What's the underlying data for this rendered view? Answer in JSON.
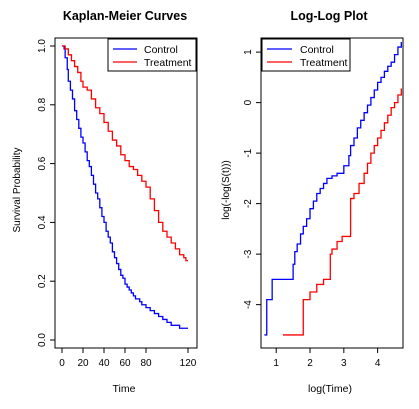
{
  "chart_data": [
    {
      "type": "line",
      "step": true,
      "title": "Kaplan-Meier Curves",
      "xlabel": "Time",
      "ylabel": "Survival Probability",
      "xlim": [
        0,
        120
      ],
      "ylim": [
        0,
        1
      ],
      "xticks": [
        0,
        20,
        40,
        60,
        80,
        120
      ],
      "yticks": [
        0.0,
        0.2,
        0.4,
        0.6,
        0.8,
        1.0
      ],
      "xtick_labels": [
        "0",
        "20",
        "40",
        "60",
        "80",
        "120"
      ],
      "ytick_labels": [
        "0.0",
        "0.2",
        "0.4",
        "0.6",
        "0.8",
        "1.0"
      ],
      "grid": false,
      "legend_position": "top-right",
      "series": [
        {
          "name": "Control",
          "color": "#0000ff",
          "x": [
            0,
            2,
            3,
            5,
            6,
            8,
            10,
            12,
            14,
            16,
            18,
            20,
            22,
            24,
            26,
            28,
            30,
            32,
            34,
            36,
            38,
            40,
            42,
            44,
            46,
            48,
            50,
            52,
            54,
            56,
            58,
            60,
            62,
            64,
            66,
            68,
            70,
            72,
            74,
            76,
            78,
            80,
            84,
            88,
            92,
            96,
            100,
            104,
            108,
            112,
            116,
            120
          ],
          "y": [
            1.0,
            0.99,
            0.96,
            0.92,
            0.88,
            0.85,
            0.82,
            0.78,
            0.75,
            0.72,
            0.69,
            0.67,
            0.64,
            0.61,
            0.59,
            0.56,
            0.53,
            0.5,
            0.48,
            0.45,
            0.42,
            0.4,
            0.37,
            0.35,
            0.33,
            0.3,
            0.28,
            0.26,
            0.24,
            0.22,
            0.21,
            0.19,
            0.18,
            0.17,
            0.16,
            0.15,
            0.14,
            0.14,
            0.13,
            0.12,
            0.12,
            0.11,
            0.1,
            0.09,
            0.08,
            0.07,
            0.06,
            0.05,
            0.05,
            0.04,
            0.04,
            0.04
          ]
        },
        {
          "name": "Treatment",
          "color": "#ff0000",
          "x": [
            0,
            3,
            6,
            9,
            12,
            15,
            18,
            20,
            24,
            28,
            32,
            36,
            40,
            44,
            48,
            52,
            56,
            60,
            64,
            68,
            72,
            76,
            80,
            84,
            88,
            92,
            96,
            100,
            104,
            108,
            112,
            116,
            118,
            120
          ],
          "y": [
            1.0,
            0.99,
            0.97,
            0.95,
            0.93,
            0.91,
            0.88,
            0.86,
            0.85,
            0.82,
            0.79,
            0.77,
            0.74,
            0.71,
            0.68,
            0.66,
            0.63,
            0.61,
            0.59,
            0.58,
            0.56,
            0.54,
            0.52,
            0.48,
            0.44,
            0.4,
            0.37,
            0.35,
            0.33,
            0.31,
            0.29,
            0.28,
            0.27,
            0.27
          ]
        }
      ]
    },
    {
      "type": "line",
      "step": true,
      "title": "Log-Log Plot",
      "xlabel": "log(Time)",
      "ylabel": "log(-log(S(t)))",
      "xlim": [
        0.55,
        4.75
      ],
      "ylim": [
        -4.7,
        1.2
      ],
      "xticks": [
        1,
        2,
        3,
        4
      ],
      "yticks": [
        -4,
        -3,
        -2,
        -1,
        0,
        1
      ],
      "xtick_labels": [
        "1",
        "2",
        "3",
        "4"
      ],
      "ytick_labels": [
        "-4",
        "-3",
        "-2",
        "-1",
        "0",
        "1"
      ],
      "grid": false,
      "legend_position": "top-left",
      "series": [
        {
          "name": "Control",
          "color": "#0000ff",
          "x": [
            0.65,
            0.72,
            0.88,
            1.5,
            1.55,
            1.62,
            1.72,
            1.8,
            1.9,
            2.0,
            2.1,
            2.2,
            2.3,
            2.4,
            2.5,
            2.65,
            2.8,
            3.0,
            3.15,
            3.2,
            3.3,
            3.4,
            3.5,
            3.6,
            3.7,
            3.8,
            3.9,
            4.0,
            4.1,
            4.2,
            4.3,
            4.4,
            4.5,
            4.6,
            4.7
          ],
          "y": [
            -4.6,
            -3.9,
            -3.5,
            -3.2,
            -2.95,
            -2.8,
            -2.6,
            -2.45,
            -2.3,
            -2.1,
            -1.95,
            -1.8,
            -1.7,
            -1.6,
            -1.5,
            -1.45,
            -1.4,
            -1.25,
            -1.05,
            -0.85,
            -0.7,
            -0.5,
            -0.35,
            -0.2,
            -0.05,
            0.1,
            0.25,
            0.4,
            0.5,
            0.62,
            0.72,
            0.8,
            0.95,
            1.1,
            1.2
          ]
        },
        {
          "name": "Treatment",
          "color": "#ff0000",
          "x": [
            1.2,
            1.8,
            2.0,
            2.2,
            2.4,
            2.6,
            2.65,
            2.8,
            2.95,
            3.2,
            3.3,
            3.45,
            3.6,
            3.7,
            3.8,
            3.9,
            4.0,
            4.1,
            4.2,
            4.3,
            4.4,
            4.5,
            4.6,
            4.7
          ],
          "y": [
            -4.6,
            -3.9,
            -3.75,
            -3.6,
            -3.5,
            -3.0,
            -2.9,
            -2.75,
            -2.65,
            -1.9,
            -1.8,
            -1.6,
            -1.4,
            -1.2,
            -1.0,
            -0.85,
            -0.7,
            -0.55,
            -0.4,
            -0.25,
            -0.1,
            0.0,
            0.15,
            0.28
          ]
        }
      ]
    }
  ]
}
